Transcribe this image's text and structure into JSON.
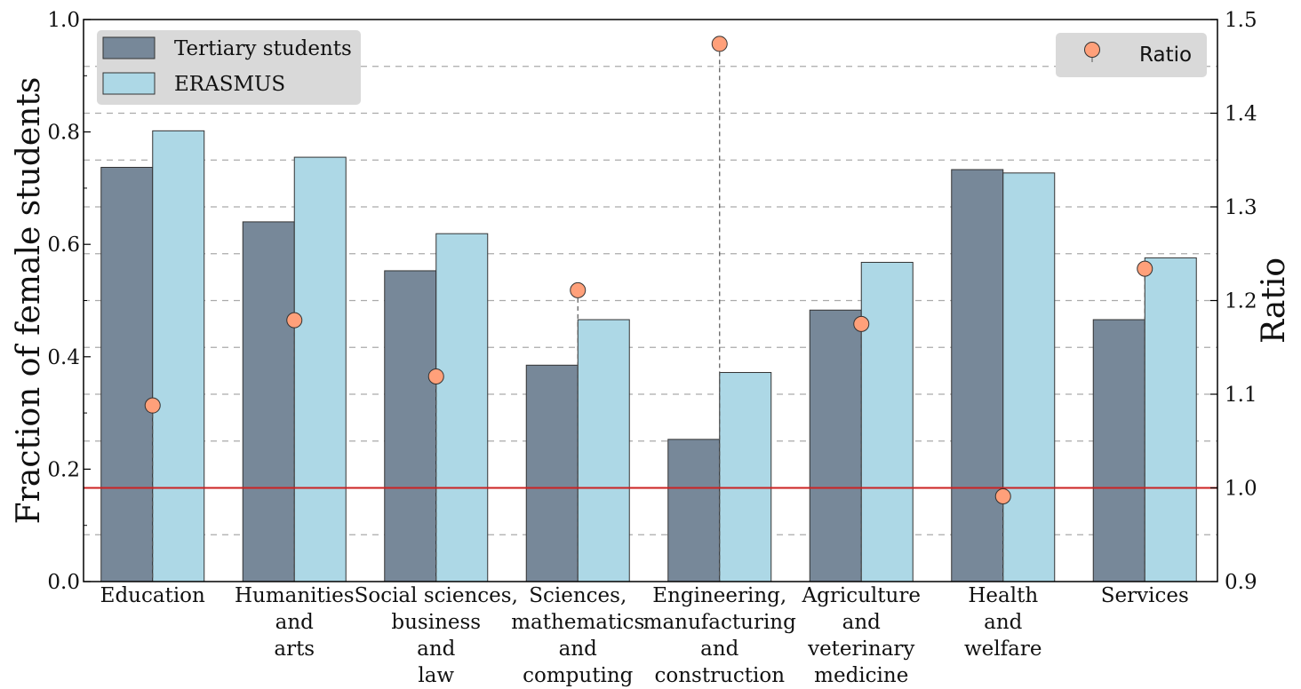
{
  "chart_data": {
    "type": "bar",
    "categories": [
      [
        "Education"
      ],
      [
        "Humanities",
        "and",
        "arts"
      ],
      [
        "Social sciences,",
        "business",
        "and",
        "law"
      ],
      [
        "Sciences,",
        "mathematics",
        "and",
        "computing"
      ],
      [
        "Engineering,",
        "manufacturing",
        "and",
        "construction"
      ],
      [
        "Agriculture",
        "and",
        "veterinary",
        "medicine"
      ],
      [
        "Health",
        "and",
        "welfare"
      ],
      [
        "Services"
      ]
    ],
    "series": [
      {
        "name": "Tertiary students",
        "axis": "left",
        "values": [
          0.737,
          0.64,
          0.553,
          0.385,
          0.253,
          0.483,
          0.733,
          0.466
        ],
        "color": "#778899"
      },
      {
        "name": "ERASMUS",
        "axis": "left",
        "values": [
          0.802,
          0.755,
          0.619,
          0.466,
          0.372,
          0.568,
          0.727,
          0.576
        ],
        "color": "#add8e6"
      },
      {
        "name": "Ratio",
        "axis": "right",
        "kind": "scatter",
        "values": [
          1.088,
          1.179,
          1.119,
          1.211,
          1.474,
          1.175,
          0.991,
          1.234
        ],
        "color": "#ffa07a"
      }
    ],
    "ylabel": "Fraction of female students",
    "ylabel_right": "Ratio",
    "ylim": [
      0.0,
      1.0
    ],
    "ylim_right": [
      0.9,
      1.5
    ],
    "yticks": [
      "0.0",
      "0.2",
      "0.4",
      "0.6",
      "0.8",
      "1.0"
    ],
    "yticks_right": [
      "0.9",
      "1.0",
      "1.1",
      "1.2",
      "1.3",
      "1.4",
      "1.5"
    ],
    "reference_line": {
      "axis": "right",
      "value": 1.0,
      "color": "#cc2222"
    },
    "grid": "right-axis dashed horizontal",
    "legend_left": "top-left",
    "legend_right": "top-right"
  }
}
